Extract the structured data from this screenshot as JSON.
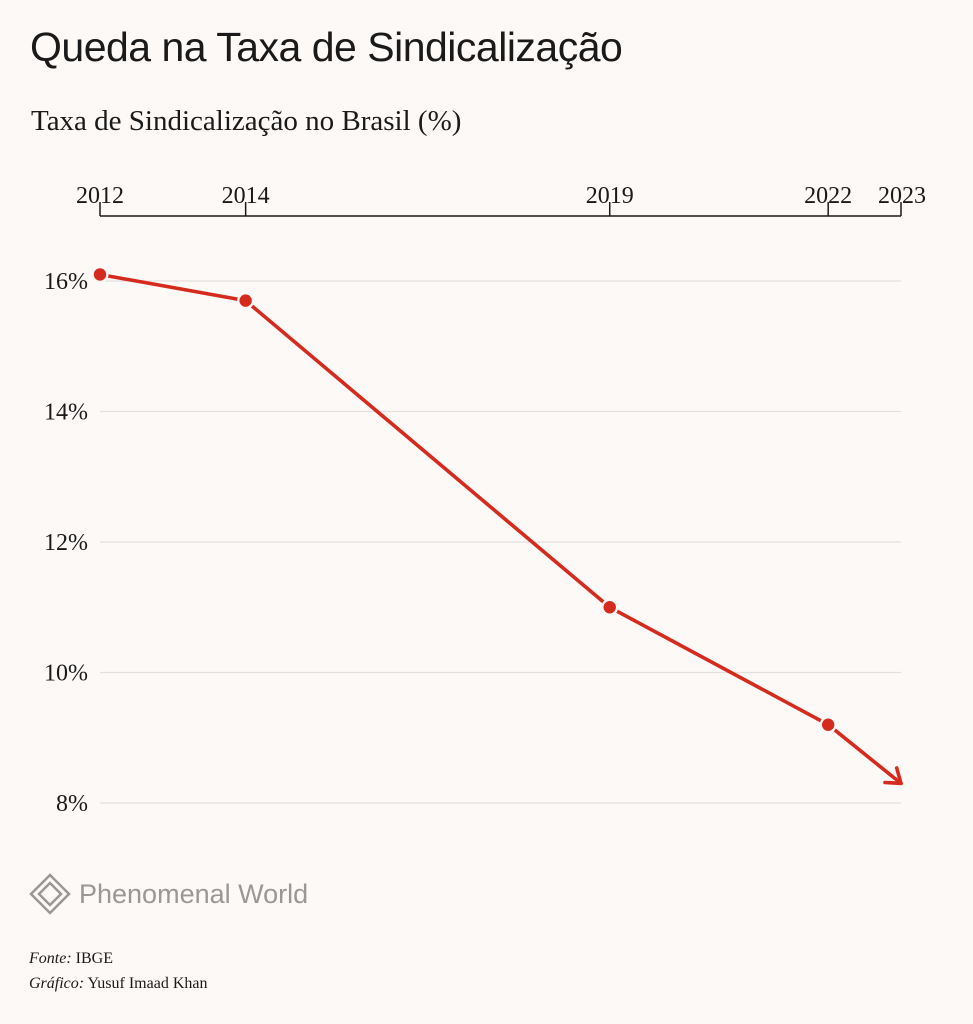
{
  "header": {
    "title": "Queda na Taxa de Sindicalização",
    "subtitle": "Taxa de Sindicalização no Brasil (%)"
  },
  "colors": {
    "background": "#fcf9f7",
    "series": "#d52b1e",
    "grid": "#e3e0de",
    "axis": "#1a1a1a",
    "logo": "#9a9896"
  },
  "chart_data": {
    "type": "line",
    "title": "Queda na Taxa de Sindicalização",
    "subtitle": "Taxa de Sindicalização no Brasil (%)",
    "x_axis_position": "top",
    "x_ticks": [
      "2012",
      "2014",
      "2019",
      "2022",
      "2023"
    ],
    "y_ticks": [
      "16%",
      "14%",
      "12%",
      "10%",
      "8%"
    ],
    "ylim": [
      8,
      16
    ],
    "xlim": [
      2012,
      2023
    ],
    "grid": "horizontal",
    "series": [
      {
        "x": [
          2012,
          2014,
          2019,
          2022
        ],
        "y": [
          16.1,
          15.7,
          11.0,
          9.2
        ],
        "markers": true,
        "arrow_to": {
          "x": 2023,
          "y": 8.3
        }
      }
    ]
  },
  "branding": {
    "logo_icon": "diamond-logo-icon",
    "logo_text": "Phenomenal World"
  },
  "credits": {
    "source_label": "Fonte:",
    "source_value": "IBGE",
    "author_label": "Gráfico:",
    "author_value": "Yusuf Imaad Khan"
  }
}
